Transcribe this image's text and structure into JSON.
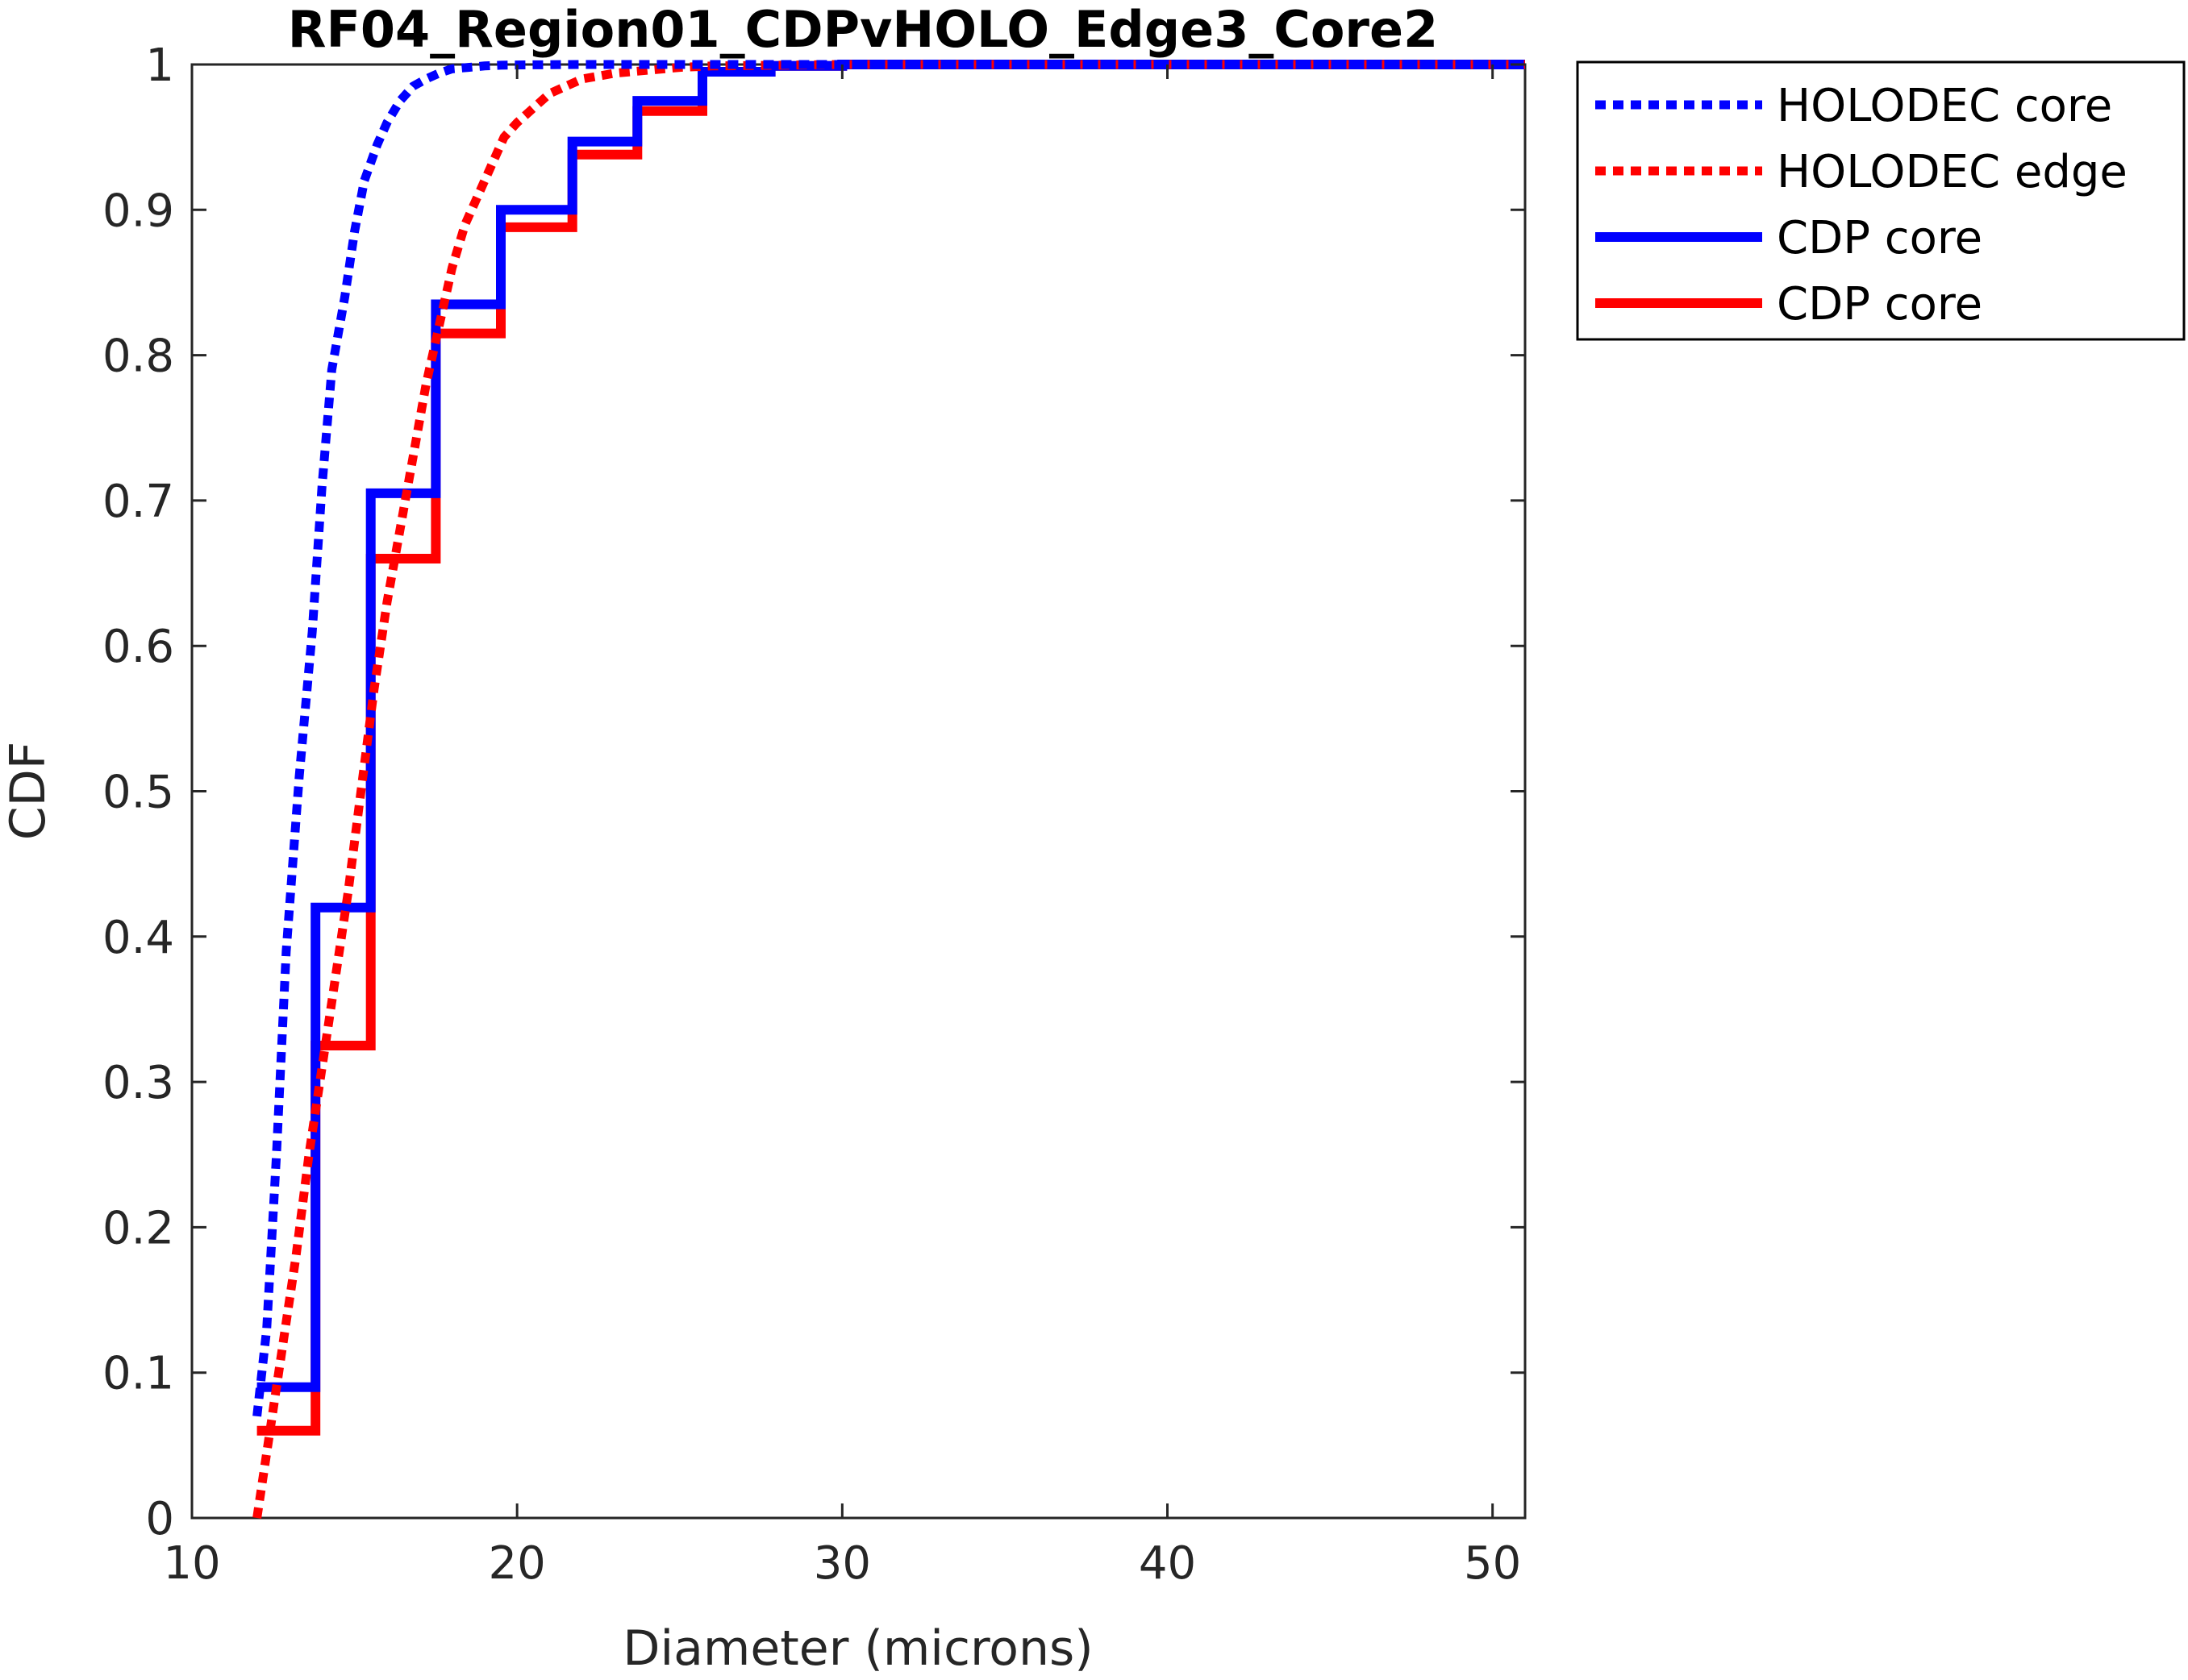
{
  "chart_data": {
    "type": "line",
    "title": "RF04_Region01_CDPvHOLO_Edge3_Core2",
    "xlabel": "Diameter (microns)",
    "ylabel": "CDF",
    "xlim": [
      10,
      51
    ],
    "ylim": [
      0,
      1
    ],
    "xticks": [
      "10",
      "20",
      "30",
      "40",
      "50"
    ],
    "yticks": [
      "0",
      "0.1",
      "0.2",
      "0.3",
      "0.4",
      "0.5",
      "0.6",
      "0.7",
      "0.8",
      "0.9",
      "1"
    ],
    "grid": false,
    "legend_position": "outside-top-right",
    "series": [
      {
        "name": "HOLODEC core",
        "color": "#0000ff",
        "style": "dotted",
        "x": [
          12.0,
          12.3,
          12.6,
          12.9,
          13.3,
          13.7,
          14.0,
          14.3,
          14.7,
          15.0,
          15.3,
          15.7,
          16.0,
          16.4,
          16.8,
          17.2,
          17.6,
          18.0,
          18.5,
          19.0,
          19.5,
          20.5,
          22.0,
          24.0,
          27.0,
          30.0,
          51.0
        ],
        "y": [
          0.07,
          0.13,
          0.25,
          0.39,
          0.51,
          0.61,
          0.71,
          0.79,
          0.84,
          0.885,
          0.92,
          0.945,
          0.96,
          0.975,
          0.985,
          0.99,
          0.994,
          0.997,
          0.998,
          0.999,
          0.9995,
          0.9998,
          1.0,
          1.0,
          1.0,
          1.0,
          1.0
        ]
      },
      {
        "name": "HOLODEC edge",
        "color": "#ff0000",
        "style": "dotted",
        "x": [
          12.0,
          12.4,
          12.8,
          13.2,
          13.6,
          14.0,
          14.4,
          14.8,
          15.2,
          15.6,
          16.0,
          16.4,
          16.8,
          17.2,
          17.6,
          18.0,
          18.4,
          18.8,
          19.2,
          19.6,
          20.0,
          20.5,
          21.0,
          21.5,
          22.0,
          23.0,
          24.0,
          25.0,
          26.0,
          28.0,
          30.0,
          51.0
        ],
        "y": [
          0.0,
          0.06,
          0.12,
          0.18,
          0.25,
          0.31,
          0.37,
          0.43,
          0.5,
          0.57,
          0.63,
          0.68,
          0.73,
          0.78,
          0.82,
          0.86,
          0.89,
          0.91,
          0.93,
          0.95,
          0.96,
          0.97,
          0.98,
          0.985,
          0.99,
          0.994,
          0.996,
          0.998,
          0.999,
          0.9995,
          1.0,
          1.0
        ]
      },
      {
        "name": "CDP core",
        "color": "#0000ff",
        "style": "solid",
        "x": [
          12.0,
          13.8,
          15.5,
          17.5,
          19.5,
          21.7,
          23.7,
          25.7,
          27.8,
          30.0,
          51.0
        ],
        "y": [
          0.09,
          0.42,
          0.705,
          0.835,
          0.9,
          0.947,
          0.975,
          0.995,
          0.999,
          1.0,
          1.0
        ]
      },
      {
        "name": "CDP core",
        "color": "#ff0000",
        "style": "solid",
        "x": [
          12.0,
          13.8,
          15.5,
          17.5,
          19.5,
          21.7,
          23.7,
          25.7,
          27.8,
          30.0,
          51.0
        ],
        "y": [
          0.06,
          0.325,
          0.66,
          0.815,
          0.888,
          0.938,
          0.968,
          0.995,
          0.999,
          1.0,
          1.0
        ]
      }
    ]
  }
}
